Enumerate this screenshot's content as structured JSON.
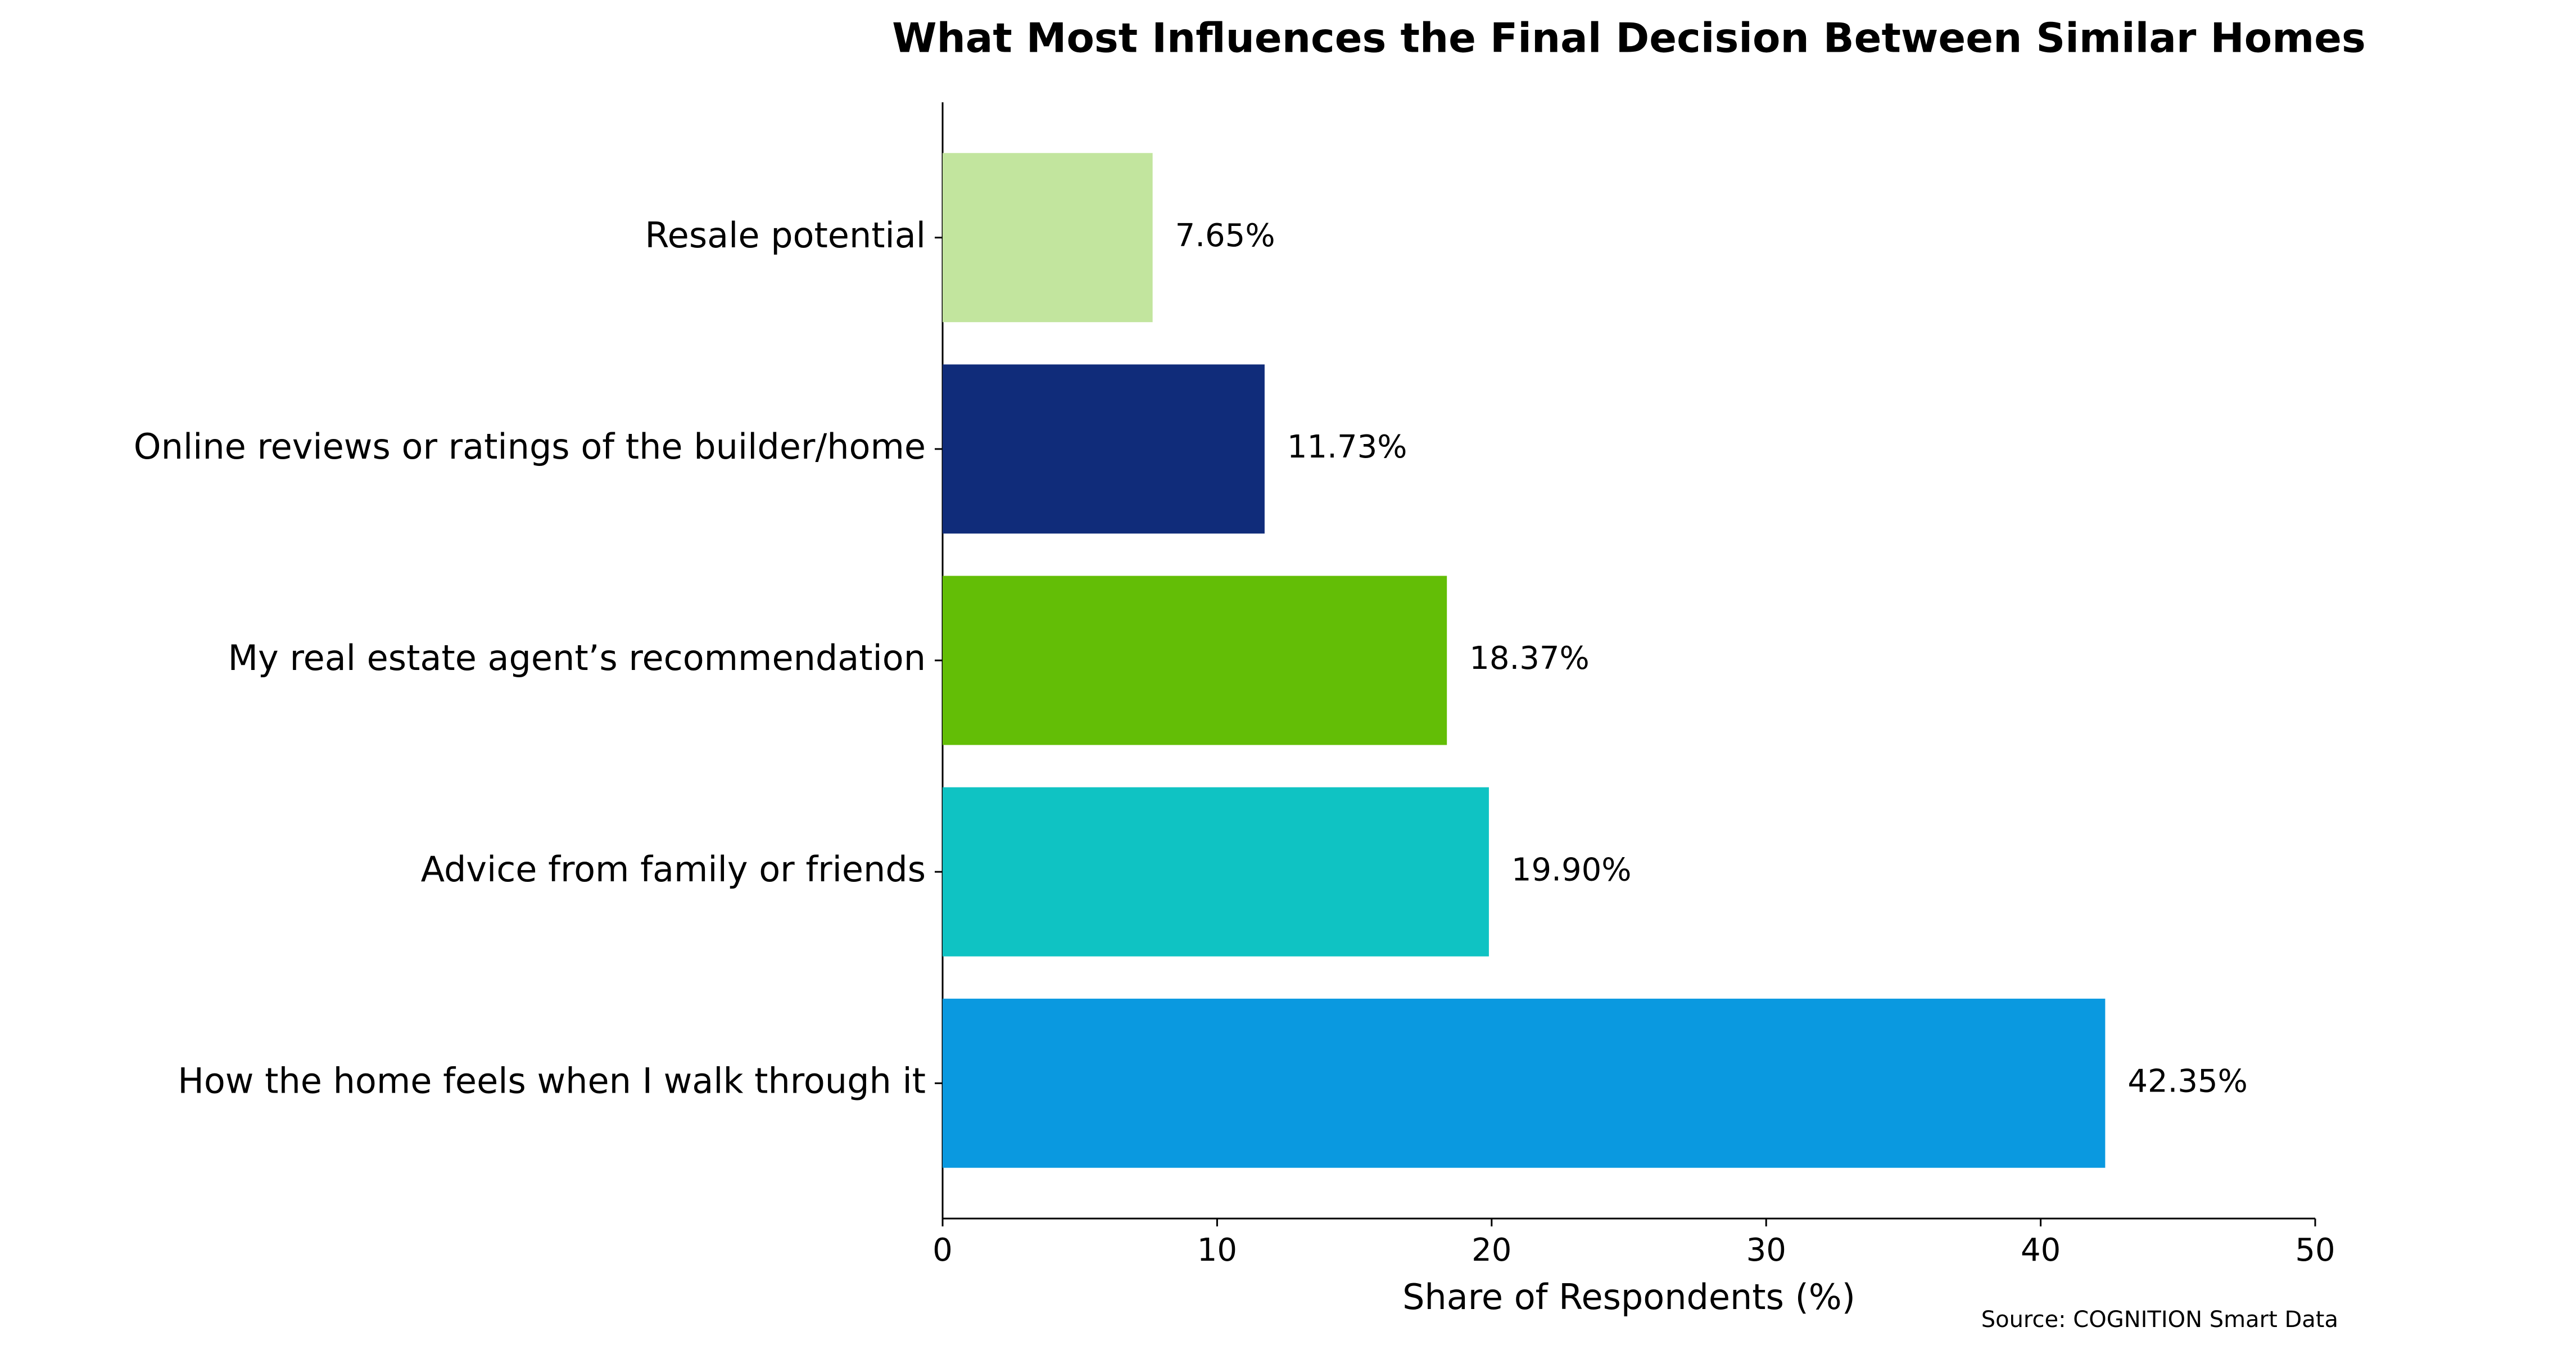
{
  "chart_data": {
    "type": "bar",
    "orientation": "horizontal",
    "title": "What Most Influences the Final Decision Between Similar Homes",
    "x_label": "Share of Respondents (%)",
    "source": "Source: COGNITION Smart Data",
    "categories": [
      "Resale potential",
      "Online reviews or ratings of the builder/home",
      "My real estate agent’s recommendation",
      "Advice from family or friends",
      "How the home feels when I walk through it"
    ],
    "values": [
      7.65,
      11.73,
      18.37,
      19.9,
      42.35
    ],
    "value_labels": [
      "7.65%",
      "11.73%",
      "18.37%",
      "19.90%",
      "42.35%"
    ],
    "colors": [
      "#c2e59e",
      "#102c7a",
      "#63be06",
      "#0fc3c3",
      "#0a99e0"
    ],
    "xlim": [
      0,
      50
    ],
    "xticks": [
      0,
      10,
      20,
      30,
      40,
      50
    ],
    "grid": false
  }
}
